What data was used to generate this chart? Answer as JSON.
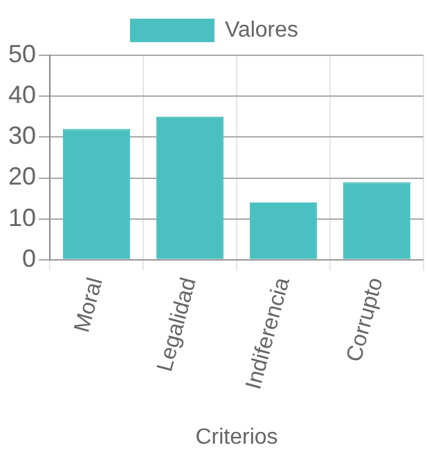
{
  "chart_data": {
    "type": "bar",
    "xlabel": "Criterios",
    "categories": [
      "Moral",
      "Legalidad",
      "Indiferencia",
      "Corrupto"
    ],
    "series": [
      {
        "name": "Valores",
        "color": "#4bc0c0",
        "values": [
          32,
          35,
          14,
          19
        ]
      }
    ],
    "ylim": [
      0,
      50
    ],
    "yticks": [
      0,
      10,
      20,
      30,
      40,
      50
    ],
    "grid": true,
    "legend": "top"
  }
}
